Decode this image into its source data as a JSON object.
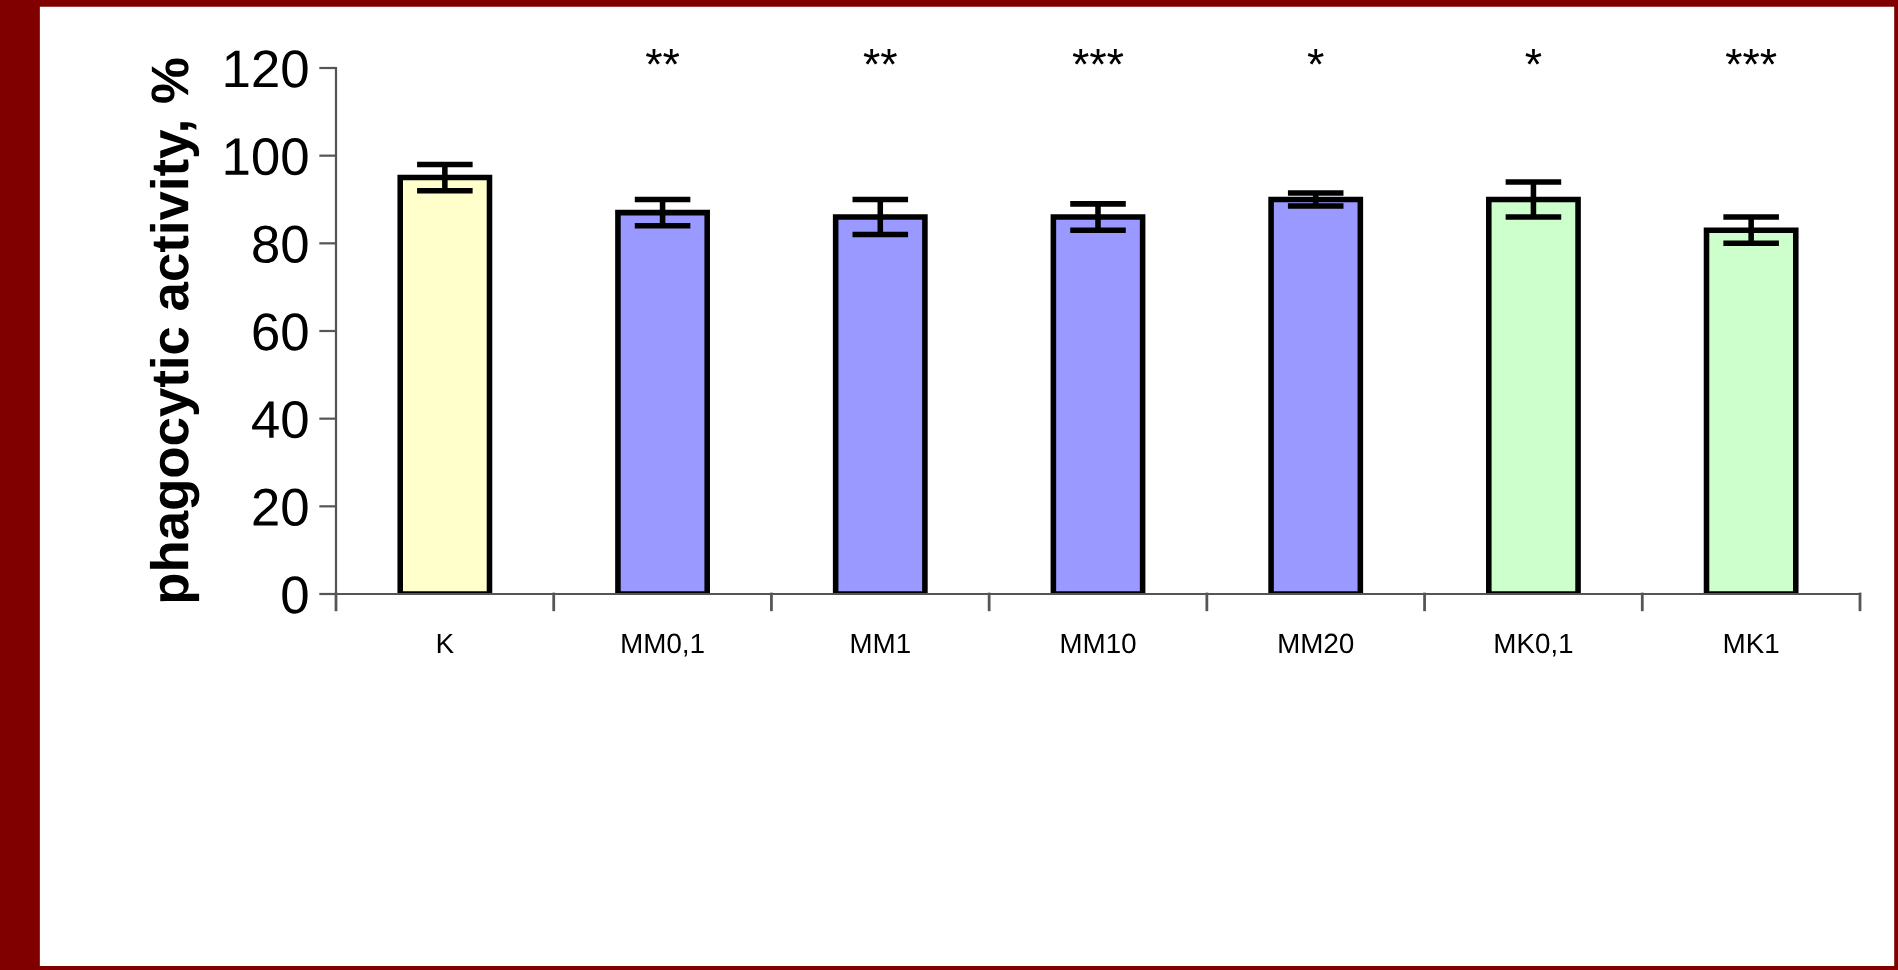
{
  "chart_data": {
    "type": "bar",
    "ylabel": "phagocytic activity, %",
    "categories": [
      "K",
      "MM0,1",
      "MM1",
      "MM10",
      "MM20",
      "MK0,1",
      "MK1"
    ],
    "values": [
      95,
      87,
      86,
      86,
      90,
      90,
      83
    ],
    "errors": [
      3,
      3,
      4,
      3,
      1.5,
      4,
      3
    ],
    "colors": [
      "#ffffcc",
      "#9999ff",
      "#9999ff",
      "#9999ff",
      "#9999ff",
      "#ccffcc",
      "#ccffcc"
    ],
    "ylim": [
      0,
      120
    ],
    "yticks": [
      0,
      20,
      40,
      60,
      80,
      100,
      120
    ],
    "annotations": [
      "**",
      "**",
      "***",
      "*",
      "*",
      "***"
    ],
    "grid": false
  }
}
